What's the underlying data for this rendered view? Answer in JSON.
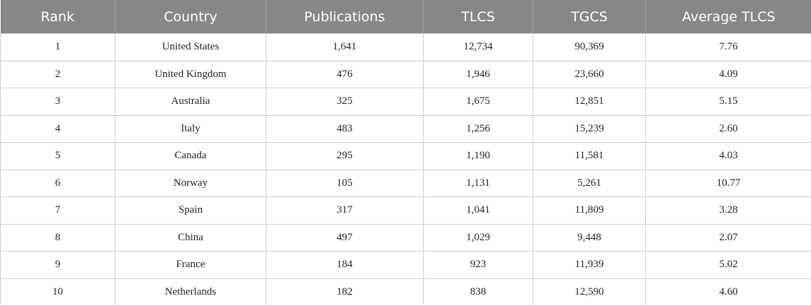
{
  "table": {
    "header": [
      "Rank",
      "Country",
      "Publications",
      "TLCS",
      "TGCS",
      "Average TLCS"
    ],
    "rows": [
      [
        "1",
        "United States",
        "1,641",
        "12,734",
        "90,369",
        "7.76"
      ],
      [
        "2",
        "United Kingdom",
        "476",
        "1,946",
        "23,660",
        "4.09"
      ],
      [
        "3",
        "Australia",
        "325",
        "1,675",
        "12,851",
        "5.15"
      ],
      [
        "4",
        "Italy",
        "483",
        "1,256",
        "15,239",
        "2.60"
      ],
      [
        "5",
        "Canada",
        "295",
        "1,190",
        "11,581",
        "4.03"
      ],
      [
        "6",
        "Norway",
        "105",
        "1,131",
        "5,261",
        "10.77"
      ],
      [
        "7",
        "Spain",
        "317",
        "1,041",
        "11,809",
        "3.28"
      ],
      [
        "8",
        "China",
        "497",
        "1,029",
        "9,448",
        "2.07"
      ],
      [
        "9",
        "France",
        "184",
        "923",
        "11,939",
        "5.02"
      ],
      [
        "10",
        "Netherlands",
        "182",
        "838",
        "12,590",
        "4.60"
      ]
    ]
  }
}
